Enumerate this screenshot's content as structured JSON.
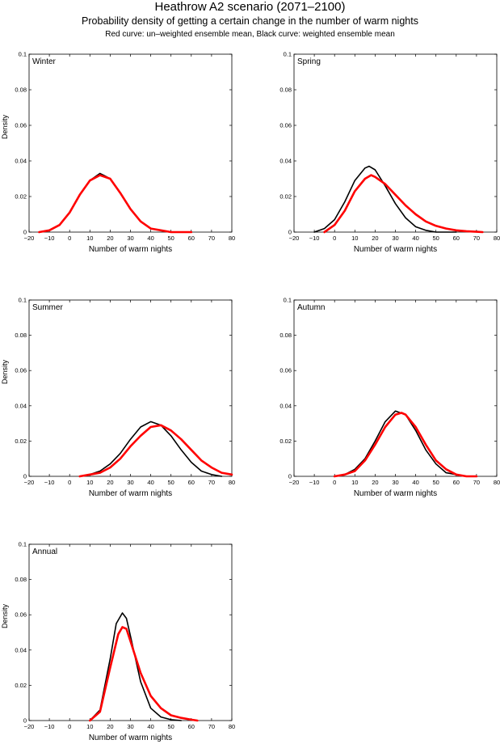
{
  "title": "Heathrow A2 scenario (2071–2100)",
  "subtitle": "Probability density of getting a certain change in the number of warm nights",
  "note": "Red curve: un–weighted ensemble mean, Black curve: weighted ensemble mean",
  "colors": {
    "unweighted": "#ff0000",
    "weighted": "#000000"
  },
  "chart_data": [
    {
      "type": "line",
      "label": "Winter",
      "xlabel": "Number of warm nights",
      "ylabel": "Density",
      "xlim": [
        -20,
        80
      ],
      "ylim": [
        0,
        0.1
      ],
      "xticks": [
        "−20",
        "−10",
        "0",
        "10",
        "20",
        "30",
        "40",
        "50",
        "60",
        "70",
        "80"
      ],
      "yticks": [
        "0",
        "0.02",
        "0.04",
        "0.06",
        "0.08",
        "0.1"
      ],
      "series": [
        {
          "color": "black",
          "x": [
            -15,
            -10,
            -5,
            0,
            5,
            10,
            15,
            20,
            25,
            30,
            35,
            40,
            45,
            50,
            55,
            60
          ],
          "y": [
            0,
            0.001,
            0.004,
            0.011,
            0.021,
            0.029,
            0.033,
            0.03,
            0.022,
            0.013,
            0.006,
            0.002,
            0.001,
            0,
            0,
            0
          ]
        },
        {
          "color": "red",
          "x": [
            -15,
            -10,
            -5,
            0,
            5,
            10,
            15,
            20,
            25,
            30,
            35,
            40,
            45,
            50,
            55,
            60
          ],
          "y": [
            0,
            0.001,
            0.004,
            0.011,
            0.021,
            0.029,
            0.032,
            0.03,
            0.022,
            0.013,
            0.006,
            0.002,
            0.001,
            0,
            0,
            0
          ]
        }
      ]
    },
    {
      "type": "line",
      "label": "Spring",
      "xlabel": "Number of warm nights",
      "ylabel": "",
      "xlim": [
        -20,
        80
      ],
      "ylim": [
        0,
        0.1
      ],
      "xticks": [
        "−20",
        "−10",
        "0",
        "10",
        "20",
        "30",
        "40",
        "50",
        "60",
        "70",
        "80"
      ],
      "yticks": [
        "0",
        "0.02",
        "0.04",
        "0.06",
        "0.08",
        "0.1"
      ],
      "series": [
        {
          "color": "black",
          "x": [
            -10,
            -5,
            0,
            5,
            10,
            15,
            17,
            20,
            25,
            30,
            35,
            40,
            45,
            50,
            55,
            60
          ],
          "y": [
            0,
            0.002,
            0.007,
            0.017,
            0.029,
            0.036,
            0.037,
            0.035,
            0.026,
            0.016,
            0.008,
            0.003,
            0.001,
            0,
            0,
            0
          ]
        },
        {
          "color": "red",
          "x": [
            -5,
            0,
            5,
            10,
            15,
            18,
            20,
            25,
            30,
            35,
            40,
            45,
            50,
            55,
            60,
            65,
            70,
            73
          ],
          "y": [
            0,
            0.004,
            0.012,
            0.023,
            0.03,
            0.032,
            0.031,
            0.027,
            0.021,
            0.015,
            0.01,
            0.006,
            0.0035,
            0.002,
            0.001,
            0.0005,
            0.0002,
            0
          ]
        }
      ]
    },
    {
      "type": "line",
      "label": "Summer",
      "xlabel": "Number of warm nights",
      "ylabel": "Density",
      "xlim": [
        -20,
        80
      ],
      "ylim": [
        0,
        0.1
      ],
      "xticks": [
        "−20",
        "−10",
        "0",
        "10",
        "20",
        "30",
        "40",
        "50",
        "60",
        "70",
        "80"
      ],
      "yticks": [
        "0",
        "0.02",
        "0.04",
        "0.06",
        "0.08",
        "0.1"
      ],
      "series": [
        {
          "color": "black",
          "x": [
            5,
            10,
            15,
            20,
            25,
            30,
            35,
            40,
            45,
            50,
            55,
            60,
            65,
            70,
            75
          ],
          "y": [
            0,
            0.001,
            0.003,
            0.007,
            0.013,
            0.021,
            0.028,
            0.031,
            0.029,
            0.023,
            0.015,
            0.008,
            0.003,
            0.001,
            0
          ]
        },
        {
          "color": "red",
          "x": [
            5,
            10,
            15,
            20,
            25,
            30,
            35,
            40,
            45,
            50,
            55,
            60,
            65,
            70,
            75,
            80
          ],
          "y": [
            0,
            0.001,
            0.002,
            0.005,
            0.01,
            0.017,
            0.023,
            0.028,
            0.029,
            0.026,
            0.021,
            0.015,
            0.009,
            0.005,
            0.002,
            0.001
          ]
        }
      ]
    },
    {
      "type": "line",
      "label": "Autumn",
      "xlabel": "Number of warm nights",
      "ylabel": "",
      "xlim": [
        -20,
        80
      ],
      "ylim": [
        0,
        0.1
      ],
      "xticks": [
        "−20",
        "−10",
        "0",
        "10",
        "20",
        "30",
        "40",
        "50",
        "60",
        "70",
        "80"
      ],
      "yticks": [
        "0",
        "0.02",
        "0.04",
        "0.06",
        "0.08",
        "0.1"
      ],
      "series": [
        {
          "color": "black",
          "x": [
            0,
            5,
            10,
            15,
            20,
            25,
            30,
            35,
            40,
            45,
            50,
            55,
            60,
            65,
            70
          ],
          "y": [
            0,
            0.001,
            0.004,
            0.01,
            0.02,
            0.031,
            0.037,
            0.035,
            0.026,
            0.015,
            0.007,
            0.002,
            0.001,
            0,
            0
          ]
        },
        {
          "color": "red",
          "x": [
            0,
            5,
            10,
            15,
            20,
            25,
            30,
            33,
            35,
            40,
            45,
            50,
            55,
            60,
            65,
            70
          ],
          "y": [
            0,
            0.001,
            0.003,
            0.009,
            0.018,
            0.028,
            0.035,
            0.036,
            0.035,
            0.028,
            0.018,
            0.009,
            0.004,
            0.001,
            0,
            0
          ]
        }
      ]
    },
    {
      "type": "line",
      "label": "Annual",
      "xlabel": "Number of warm nights",
      "ylabel": "Density",
      "xlim": [
        -20,
        80
      ],
      "ylim": [
        0,
        0.1
      ],
      "xticks": [
        "−20",
        "−10",
        "0",
        "10",
        "20",
        "30",
        "40",
        "50",
        "60",
        "70",
        "80"
      ],
      "yticks": [
        "0",
        "0.02",
        "0.04",
        "0.06",
        "0.08",
        "0.1"
      ],
      "series": [
        {
          "color": "black",
          "x": [
            10,
            15,
            20,
            23,
            26,
            28,
            30,
            35,
            40,
            45,
            50,
            55
          ],
          "y": [
            0,
            0.006,
            0.035,
            0.055,
            0.061,
            0.058,
            0.048,
            0.022,
            0.007,
            0.002,
            0.0005,
            0
          ]
        },
        {
          "color": "red",
          "x": [
            10,
            15,
            20,
            24,
            26,
            28,
            30,
            35,
            40,
            45,
            50,
            55,
            60,
            63
          ],
          "y": [
            0,
            0.005,
            0.03,
            0.049,
            0.053,
            0.052,
            0.045,
            0.027,
            0.014,
            0.007,
            0.003,
            0.0015,
            0.0005,
            0
          ]
        }
      ]
    }
  ]
}
